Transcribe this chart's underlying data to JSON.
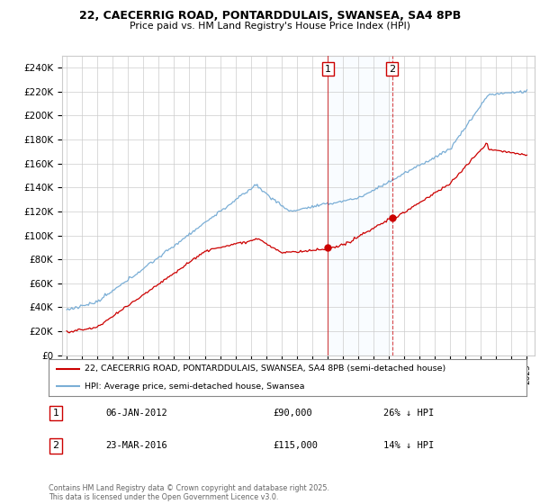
{
  "title_line1": "22, CAECERRIG ROAD, PONTARDDULAIS, SWANSEA, SA4 8PB",
  "title_line2": "Price paid vs. HM Land Registry's House Price Index (HPI)",
  "ylim": [
    0,
    250000
  ],
  "yticks": [
    0,
    20000,
    40000,
    60000,
    80000,
    100000,
    120000,
    140000,
    160000,
    180000,
    200000,
    220000,
    240000
  ],
  "ytick_labels": [
    "£0",
    "£20K",
    "£40K",
    "£60K",
    "£80K",
    "£100K",
    "£120K",
    "£140K",
    "£160K",
    "£180K",
    "£200K",
    "£220K",
    "£240K"
  ],
  "sale1_date": "06-JAN-2012",
  "sale1_price": 90000,
  "sale1_x": 2012.02,
  "sale2_date": "23-MAR-2016",
  "sale2_price": 115000,
  "sale2_x": 2016.22,
  "sale1_pct": "26% ↓ HPI",
  "sale2_pct": "14% ↓ HPI",
  "legend_house": "22, CAECERRIG ROAD, PONTARDDULAIS, SWANSEA, SA4 8PB (semi-detached house)",
  "legend_hpi": "HPI: Average price, semi-detached house, Swansea",
  "copyright": "Contains HM Land Registry data © Crown copyright and database right 2025.\nThis data is licensed under the Open Government Licence v3.0.",
  "house_color": "#cc0000",
  "hpi_color": "#7aaed6",
  "shade_color": "#ddeeff",
  "background": "#ffffff",
  "grid_color": "#cccccc",
  "xlim_left": 1994.7,
  "xlim_right": 2025.5
}
